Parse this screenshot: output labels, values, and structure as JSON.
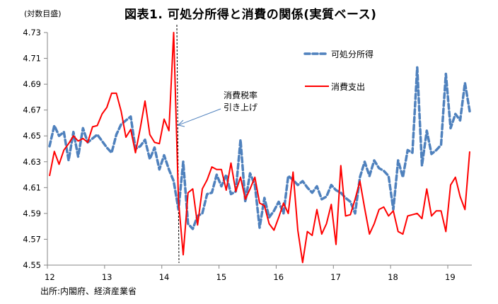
{
  "chart_data": {
    "type": "line",
    "title": "図表1. 可処分所得と消費の関係(実質ベース)",
    "ylabel": "(対数目盛)",
    "xlabel": "",
    "source": "出所:内閣府、経済産業省",
    "ylim": [
      4.55,
      4.73
    ],
    "yticks": [
      "4.55",
      "4.57",
      "4.59",
      "4.61",
      "4.63",
      "4.65",
      "4.67",
      "4.69",
      "4.71",
      "4.73"
    ],
    "xlim_months": [
      0,
      89
    ],
    "xticks": [
      {
        "label": "12",
        "month": 0
      },
      {
        "label": "13",
        "month": 12
      },
      {
        "label": "14",
        "month": 24
      },
      {
        "label": "15",
        "month": 36
      },
      {
        "label": "16",
        "month": 48
      },
      {
        "label": "17",
        "month": 60
      },
      {
        "label": "18",
        "month": 72
      },
      {
        "label": "19",
        "month": 84
      }
    ],
    "grid": false,
    "legend_position": "top-right",
    "series": [
      {
        "name": "可処分所得",
        "color": "#4F81BD",
        "style": "dashed",
        "start_month": 0,
        "values": [
          4.642,
          4.658,
          4.65,
          4.653,
          4.631,
          4.653,
          4.634,
          4.656,
          4.645,
          4.648,
          4.651,
          4.646,
          4.641,
          4.637,
          4.651,
          4.659,
          4.662,
          4.665,
          4.64,
          4.642,
          4.647,
          4.632,
          4.641,
          4.624,
          4.635,
          4.624,
          4.615,
          4.593,
          4.63,
          4.582,
          4.578,
          4.588,
          4.59,
          4.605,
          4.606,
          4.62,
          4.611,
          4.62,
          4.605,
          4.607,
          4.647,
          4.599,
          4.621,
          4.612,
          4.579,
          4.602,
          4.587,
          4.592,
          4.599,
          4.59,
          4.619,
          4.616,
          4.612,
          4.615,
          4.61,
          4.606,
          4.611,
          4.601,
          4.603,
          4.612,
          4.608,
          4.606,
          4.602,
          4.599,
          4.59,
          4.618,
          4.63,
          4.619,
          4.631,
          4.625,
          4.623,
          4.619,
          4.593,
          4.631,
          4.618,
          4.639,
          4.637,
          4.703,
          4.627,
          4.654,
          4.636,
          4.639,
          4.643,
          4.698,
          4.656,
          4.667,
          4.662,
          4.691,
          4.669
        ]
      },
      {
        "name": "消費支出",
        "color": "#FF0000",
        "style": "solid",
        "start_month": 0,
        "values": [
          4.619,
          4.638,
          4.628,
          4.639,
          4.644,
          4.65,
          4.646,
          4.648,
          4.645,
          4.657,
          4.658,
          4.667,
          4.672,
          4.683,
          4.683,
          4.669,
          4.649,
          4.655,
          4.637,
          4.656,
          4.677,
          4.651,
          4.645,
          4.644,
          4.663,
          4.654,
          4.73,
          4.6,
          4.558,
          4.606,
          4.609,
          4.581,
          4.609,
          4.616,
          4.626,
          4.624,
          4.624,
          4.608,
          4.629,
          4.607,
          4.618,
          4.601,
          4.609,
          4.618,
          4.598,
          4.596,
          4.582,
          4.577,
          4.587,
          4.598,
          4.59,
          4.622,
          4.577,
          4.552,
          4.576,
          4.573,
          4.593,
          4.574,
          4.582,
          4.597,
          4.566,
          4.627,
          4.588,
          4.589,
          4.601,
          4.615,
          4.594,
          4.574,
          4.582,
          4.593,
          4.595,
          4.588,
          4.592,
          4.576,
          4.574,
          4.588,
          4.589,
          4.59,
          4.586,
          4.609,
          4.588,
          4.592,
          4.592,
          4.576,
          4.612,
          4.618,
          4.603,
          4.593,
          4.638
        ]
      }
    ],
    "annotations": [
      {
        "text_line1": "消費税率",
        "text_line2": "引き上げ",
        "month": 27.5,
        "type": "vertical-dashed-line-with-arrow"
      }
    ]
  }
}
